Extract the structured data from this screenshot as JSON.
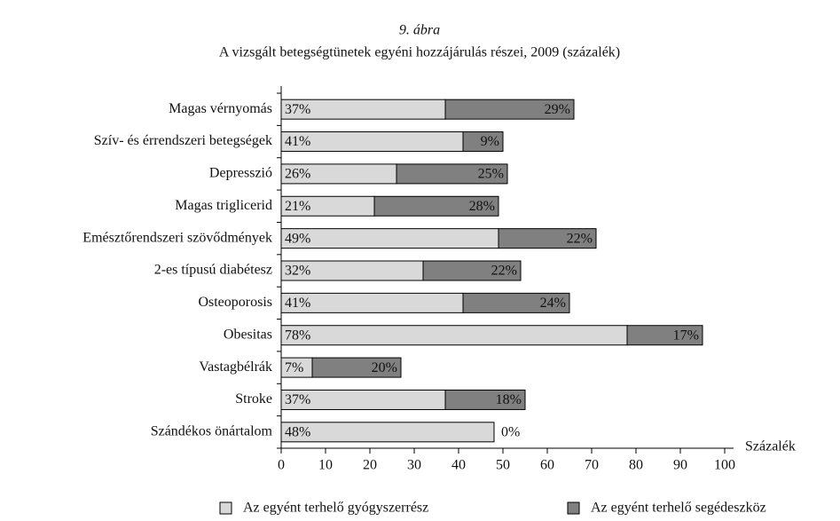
{
  "chart_data": {
    "type": "stacked_barh",
    "title": "9. ábra",
    "subtitle": "A vizsgált betegségtünetek egyéni hozzájárulás részei, 2009 (százalék)",
    "xlabel": "Százalék",
    "categories": [
      "Magas vérnyomás",
      "Szív- és érrendszeri betegségek",
      "Depresszió",
      "Magas triglicerid",
      "Emésztőrendszeri szövődmények",
      "2-es típusú diabétesz",
      "Osteoporosis",
      "Obesitas",
      "Vastagbélrák",
      "Stroke",
      "Szándékos önártalom"
    ],
    "series": [
      {
        "name": "Az egyént terhelő gyógyszerrész",
        "color": "#d9d9d9",
        "values": [
          37,
          41,
          26,
          21,
          49,
          32,
          41,
          78,
          7,
          37,
          48
        ],
        "value_labels": [
          "37%",
          "41%",
          "26%",
          "21%",
          "49%",
          "32%",
          "41%",
          "78%",
          "7%",
          "37%",
          "48%"
        ]
      },
      {
        "name": "Az egyént terhelő segédeszköz",
        "color": "#808080",
        "values": [
          29,
          9,
          25,
          28,
          22,
          22,
          24,
          17,
          20,
          18,
          0
        ],
        "value_labels": [
          "29%",
          "9%",
          "25%",
          "28%",
          "22%",
          "22%",
          "24%",
          "17%",
          "20%",
          "18%",
          "0%"
        ]
      }
    ],
    "xlim": [
      0,
      100
    ],
    "xticks": [
      0,
      10,
      20,
      30,
      40,
      50,
      60,
      70,
      80,
      90,
      100
    ],
    "legend": "bottom"
  }
}
